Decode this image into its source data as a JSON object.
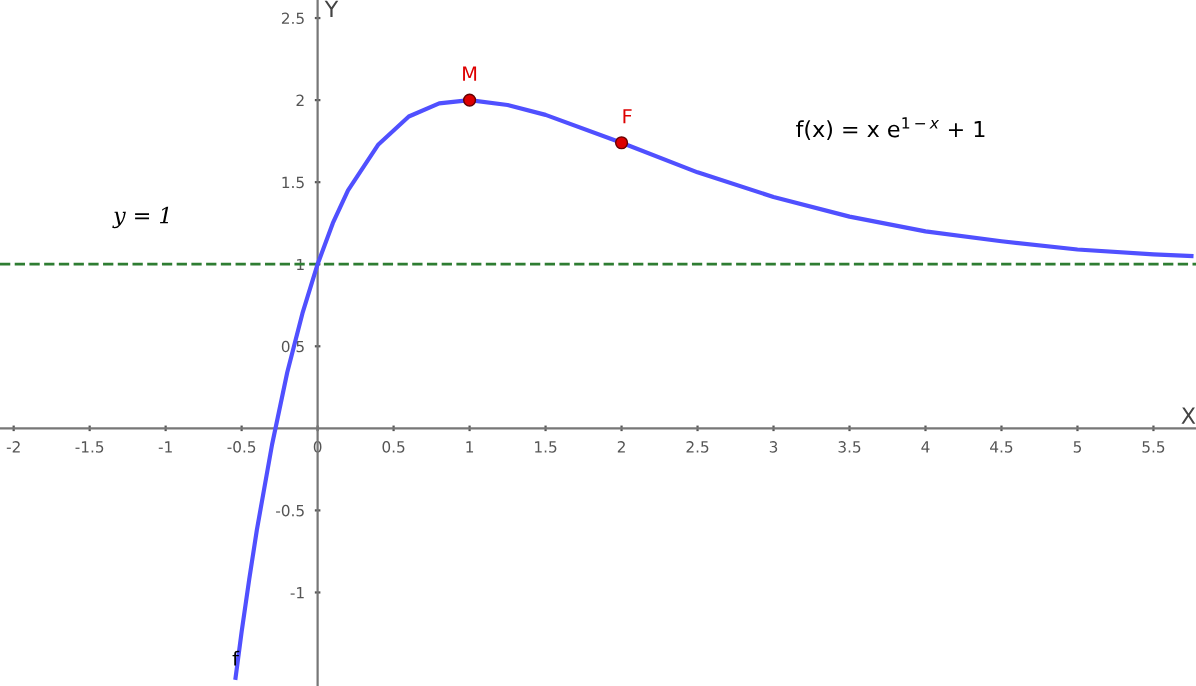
{
  "chart_data": {
    "type": "line",
    "xlabel": "X",
    "ylabel": "Y",
    "xlim": [
      -2.09,
      5.78
    ],
    "ylim": [
      -1.57,
      2.61
    ],
    "xticks": [
      -2,
      -1.5,
      -1,
      -0.5,
      0,
      0.5,
      1,
      1.5,
      2,
      2.5,
      3,
      3.5,
      4,
      4.5,
      5,
      5.5
    ],
    "yticks": [
      -1,
      -0.5,
      0.5,
      1,
      1.5,
      2,
      2.5
    ],
    "grid": false,
    "marker": "none",
    "line_style": "solid",
    "series": [
      {
        "name": "f",
        "color": "#5050ff",
        "x": [
          -0.54,
          -0.5,
          -0.45,
          -0.4,
          -0.3,
          -0.2,
          -0.1,
          0,
          0.1,
          0.2,
          0.4,
          0.6,
          0.8,
          1,
          1.25,
          1.5,
          2,
          2.5,
          3,
          3.5,
          4,
          4.5,
          5,
          5.5,
          5.75
        ],
        "values": [
          -1.52,
          -1.24,
          -0.92,
          -0.62,
          -0.1,
          0.34,
          0.7,
          1,
          1.25,
          1.45,
          1.73,
          1.9,
          1.98,
          2,
          1.97,
          1.91,
          1.74,
          1.56,
          1.41,
          1.29,
          1.2,
          1.14,
          1.09,
          1.06,
          1.05
        ]
      },
      {
        "type": "scatter",
        "name": "M",
        "color": "#dd0000",
        "x": [
          1
        ],
        "values": [
          2
        ],
        "marker": "circle"
      },
      {
        "type": "scatter",
        "name": "F",
        "color": "#dd0000",
        "x": [
          2
        ],
        "values": [
          1.74
        ],
        "marker": "circle"
      }
    ],
    "ref_lines": [
      {
        "axis": "y",
        "value": 1,
        "label": "y = 1",
        "color": "#2e7d32",
        "line_style": "dashed"
      }
    ],
    "annotations": [
      "f(x) = x e$^{1−x}$ + 1"
    ]
  }
}
